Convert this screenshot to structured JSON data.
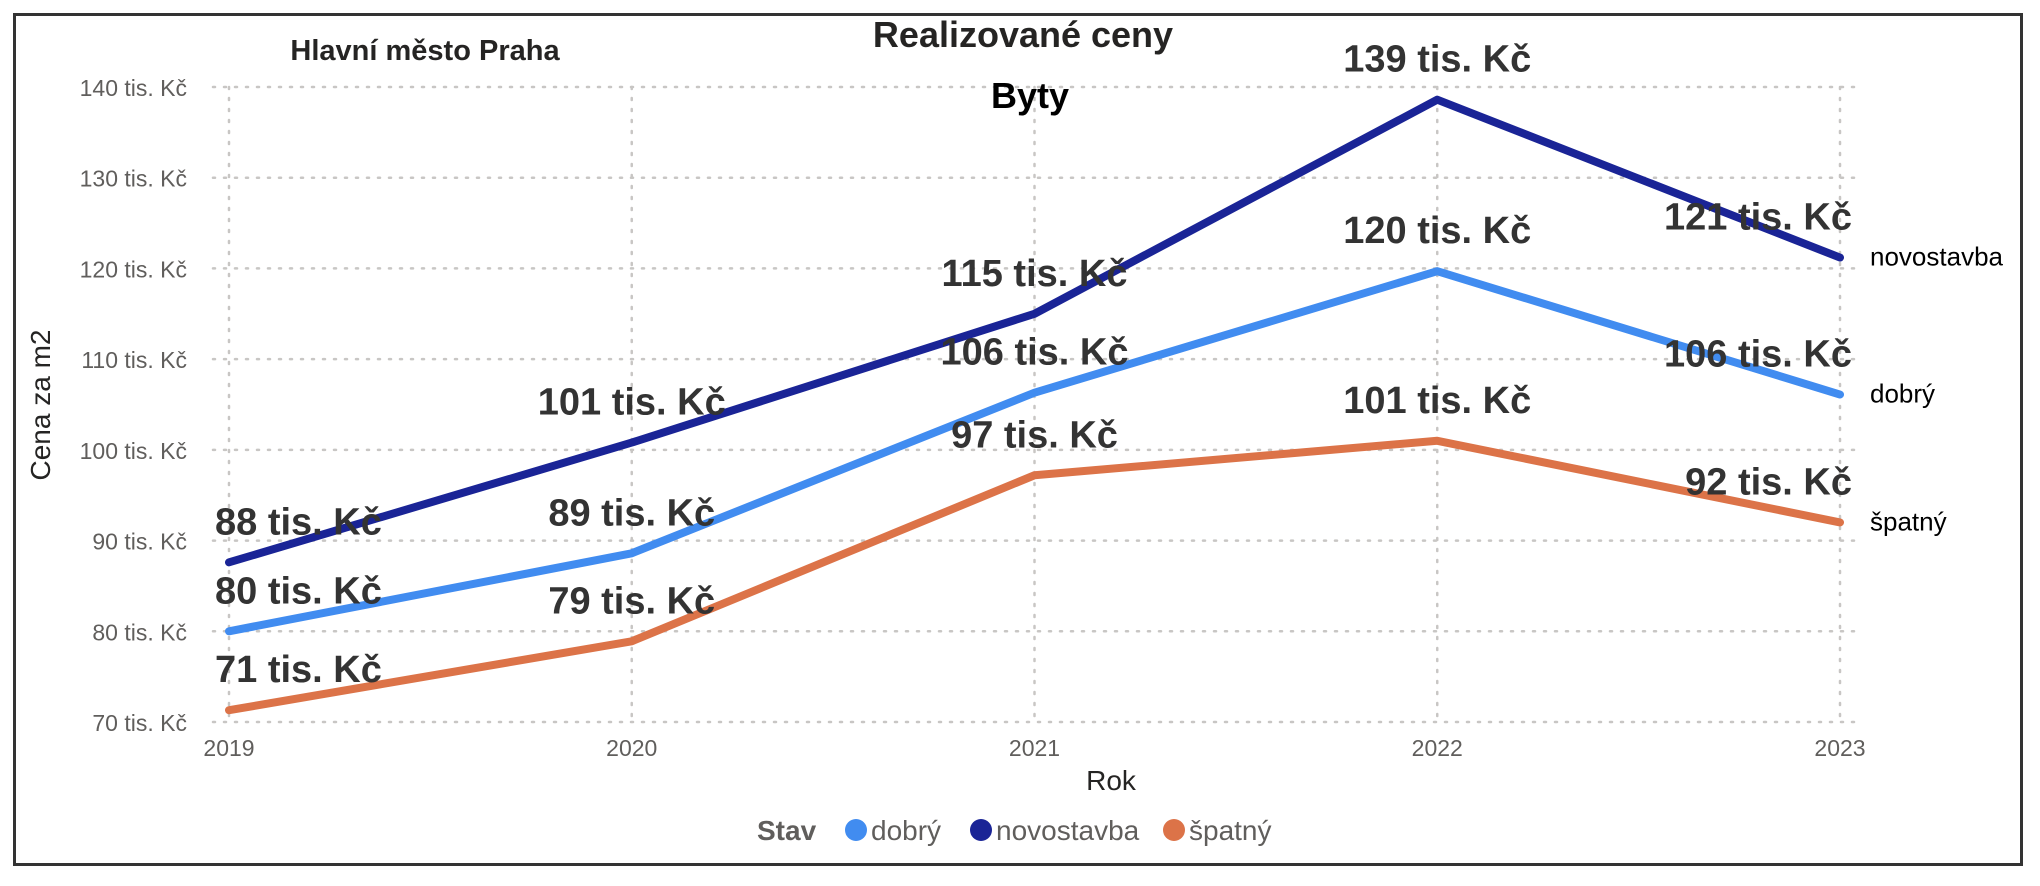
{
  "chart_data": {
    "type": "line",
    "title": "Realizované ceny",
    "subtitle": "Byty",
    "region": "Hlavní město Praha",
    "xlabel": "Rok",
    "ylabel": "Cena za m2",
    "categories": [
      "2019",
      "2020",
      "2021",
      "2022",
      "2023"
    ],
    "ylim": [
      70,
      140
    ],
    "yticks": [
      70,
      80,
      90,
      100,
      110,
      120,
      130,
      140
    ],
    "ytick_labels": [
      "70 tis. Kč",
      "80 tis. Kč",
      "90 tis. Kč",
      "100 tis. Kč",
      "110 tis. Kč",
      "120 tis. Kč",
      "130 tis. Kč",
      "140 tis. Kč"
    ],
    "grid": true,
    "legend_title": "Stav",
    "legend_position": "bottom",
    "series": [
      {
        "name": "dobrý",
        "color": "#418CF0",
        "values": [
          80,
          88.6,
          106.3,
          119.7,
          106.1
        ],
        "labels": [
          "80 tis. Kč",
          "89 tis. Kč",
          "106 tis. Kč",
          "120 tis. Kč",
          "106 tis. Kč"
        ]
      },
      {
        "name": "novostavba",
        "color": "#1A2496",
        "values": [
          87.6,
          100.8,
          115.0,
          138.6,
          121.2
        ],
        "labels": [
          "88 tis. Kč",
          "101 tis. Kč",
          "115 tis. Kč",
          "139 tis. Kč",
          "121 tis. Kč"
        ]
      },
      {
        "name": "špatný",
        "color": "#DC7348",
        "values": [
          71.3,
          78.9,
          97.2,
          101.0,
          92.0
        ],
        "labels": [
          "71 tis. Kč",
          "79 tis. Kč",
          "97 tis. Kč",
          "101 tis. Kč",
          "92 tis. Kč"
        ]
      }
    ],
    "end_label_order": [
      "novostavba",
      "dobrý",
      "špatný"
    ]
  }
}
